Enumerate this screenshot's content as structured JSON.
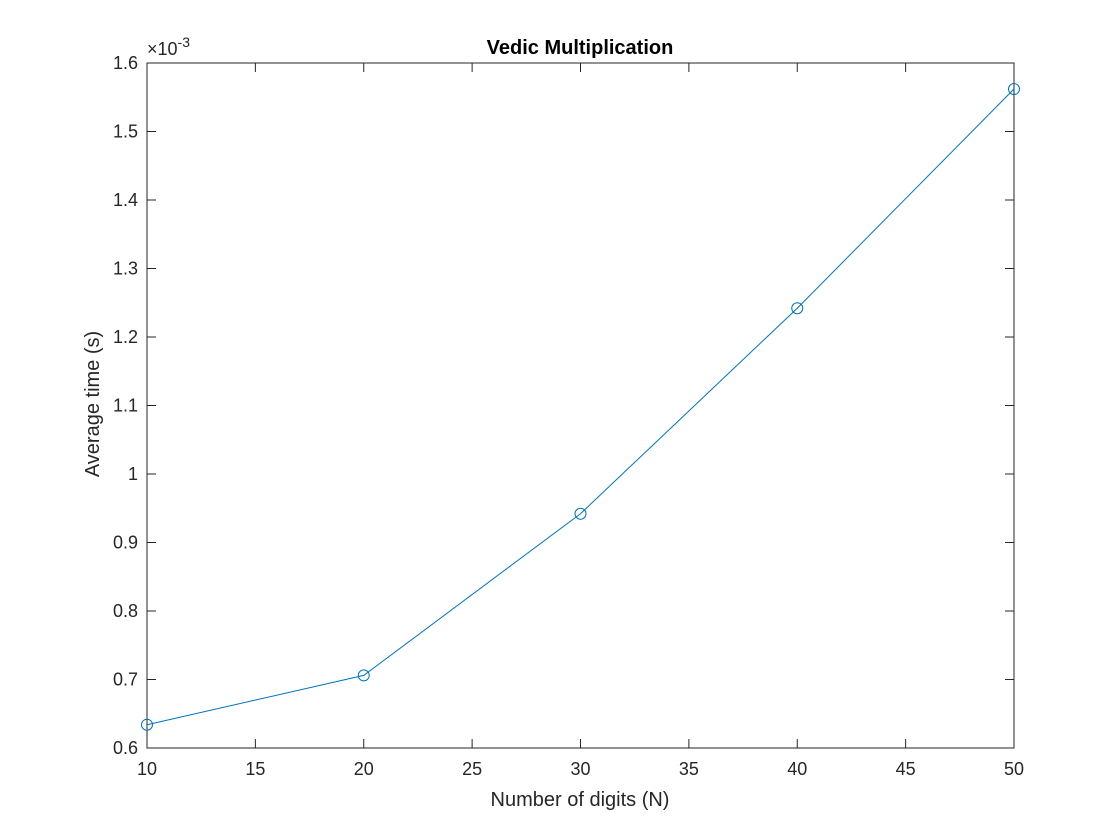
{
  "chart_data": {
    "type": "line",
    "title": "Vedic Multiplication",
    "xlabel": "Number of digits (N)",
    "ylabel": "Average time (s)",
    "y_exponent_base": "×10",
    "y_exponent_power": "-3",
    "xlim": [
      10,
      50
    ],
    "ylim": [
      0.6,
      1.6
    ],
    "xticks": [
      10,
      15,
      20,
      25,
      30,
      35,
      40,
      45,
      50
    ],
    "yticks": [
      0.6,
      0.7,
      0.8,
      0.9,
      1.0,
      1.1,
      1.2,
      1.3,
      1.4,
      1.5,
      1.6
    ],
    "xtick_labels": [
      "10",
      "15",
      "20",
      "25",
      "30",
      "35",
      "40",
      "45",
      "50"
    ],
    "ytick_labels": [
      "0.6",
      "0.7",
      "0.8",
      "0.9",
      "1",
      "1.1",
      "1.2",
      "1.3",
      "1.4",
      "1.5",
      "1.6"
    ],
    "grid": false,
    "legend": "none",
    "series": [
      {
        "x": [
          10,
          20,
          30,
          40,
          50
        ],
        "y": [
          0.634,
          0.706,
          0.942,
          1.242,
          1.562
        ],
        "color": "#0072BD",
        "marker": "circle"
      }
    ]
  }
}
